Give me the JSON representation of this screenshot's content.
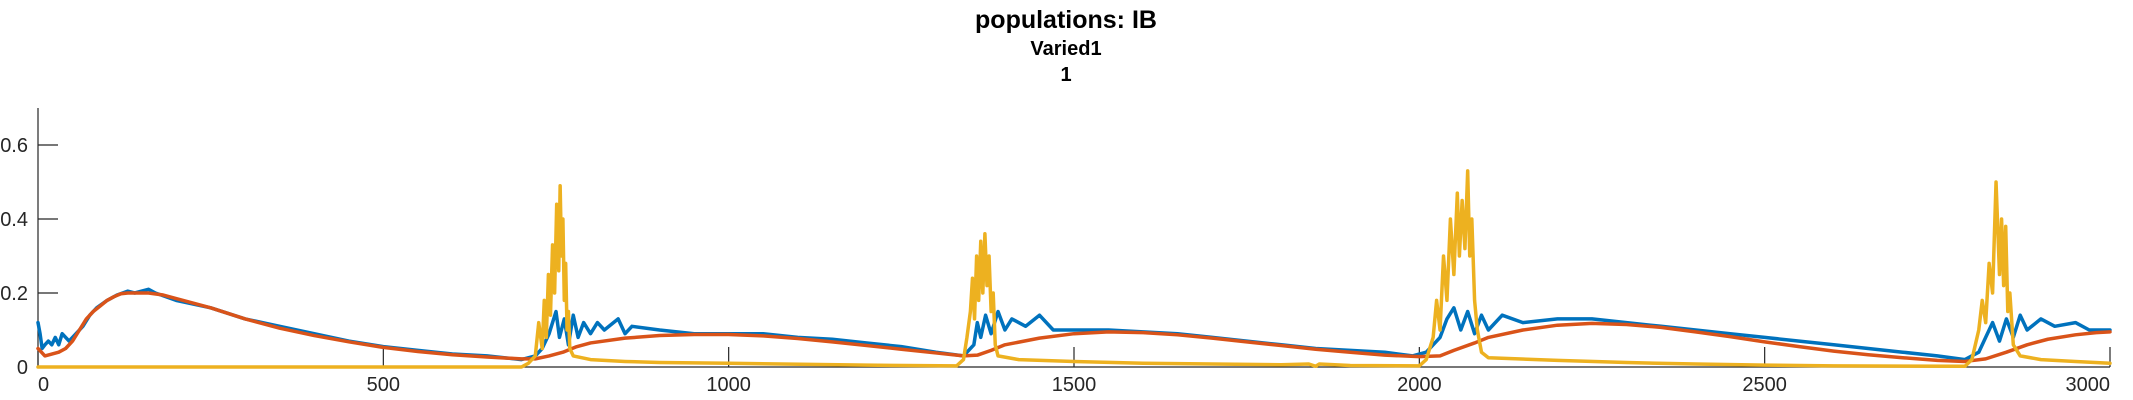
{
  "chart_data": {
    "type": "line",
    "title": "populations: IB",
    "subtitle": "Varied1",
    "subtitle2": "1",
    "xlabel": "",
    "ylabel": "",
    "xlim": [
      0,
      3000
    ],
    "ylim": [
      0,
      0.7
    ],
    "xticks": [
      0,
      500,
      1000,
      1500,
      2000,
      2500,
      3000
    ],
    "xtick_labels": [
      "0",
      "500",
      "1000",
      "1500",
      "2000",
      "2500",
      "3000"
    ],
    "yticks": [
      0,
      0.2,
      0.4,
      0.6
    ],
    "ytick_labels": [
      "0",
      "0.2",
      "0.4",
      "0.6"
    ],
    "grid": false,
    "legend": "none",
    "series": [
      {
        "color": "#0072BD",
        "points": [
          [
            0,
            0.12
          ],
          [
            3,
            0.09
          ],
          [
            6,
            0.05
          ],
          [
            10,
            0.06
          ],
          [
            15,
            0.07
          ],
          [
            20,
            0.06
          ],
          [
            25,
            0.08
          ],
          [
            30,
            0.06
          ],
          [
            35,
            0.09
          ],
          [
            45,
            0.07
          ],
          [
            55,
            0.09
          ],
          [
            65,
            0.11
          ],
          [
            75,
            0.14
          ],
          [
            85,
            0.16
          ],
          [
            100,
            0.18
          ],
          [
            115,
            0.195
          ],
          [
            130,
            0.205
          ],
          [
            140,
            0.2
          ],
          [
            160,
            0.21
          ],
          [
            170,
            0.2
          ],
          [
            200,
            0.18
          ],
          [
            250,
            0.16
          ],
          [
            300,
            0.13
          ],
          [
            350,
            0.11
          ],
          [
            400,
            0.09
          ],
          [
            450,
            0.07
          ],
          [
            500,
            0.055
          ],
          [
            550,
            0.045
          ],
          [
            600,
            0.035
          ],
          [
            650,
            0.03
          ],
          [
            700,
            0.02
          ],
          [
            720,
            0.03
          ],
          [
            730,
            0.05
          ],
          [
            740,
            0.09
          ],
          [
            750,
            0.15
          ],
          [
            755,
            0.08
          ],
          [
            762,
            0.13
          ],
          [
            768,
            0.06
          ],
          [
            775,
            0.14
          ],
          [
            782,
            0.08
          ],
          [
            790,
            0.12
          ],
          [
            800,
            0.09
          ],
          [
            810,
            0.12
          ],
          [
            820,
            0.1
          ],
          [
            840,
            0.13
          ],
          [
            850,
            0.09
          ],
          [
            860,
            0.11
          ],
          [
            900,
            0.1
          ],
          [
            950,
            0.09
          ],
          [
            1000,
            0.09
          ],
          [
            1050,
            0.09
          ],
          [
            1100,
            0.08
          ],
          [
            1150,
            0.075
          ],
          [
            1200,
            0.065
          ],
          [
            1250,
            0.055
          ],
          [
            1300,
            0.04
          ],
          [
            1340,
            0.03
          ],
          [
            1355,
            0.06
          ],
          [
            1360,
            0.12
          ],
          [
            1365,
            0.08
          ],
          [
            1372,
            0.14
          ],
          [
            1380,
            0.09
          ],
          [
            1390,
            0.15
          ],
          [
            1400,
            0.1
          ],
          [
            1410,
            0.13
          ],
          [
            1430,
            0.11
          ],
          [
            1450,
            0.14
          ],
          [
            1470,
            0.1
          ],
          [
            1500,
            0.1
          ],
          [
            1550,
            0.1
          ],
          [
            1600,
            0.095
          ],
          [
            1650,
            0.09
          ],
          [
            1700,
            0.08
          ],
          [
            1750,
            0.07
          ],
          [
            1800,
            0.06
          ],
          [
            1850,
            0.05
          ],
          [
            1900,
            0.045
          ],
          [
            1950,
            0.04
          ],
          [
            1990,
            0.03
          ],
          [
            2010,
            0.04
          ],
          [
            2030,
            0.08
          ],
          [
            2040,
            0.13
          ],
          [
            2050,
            0.16
          ],
          [
            2060,
            0.1
          ],
          [
            2070,
            0.15
          ],
          [
            2080,
            0.09
          ],
          [
            2090,
            0.14
          ],
          [
            2100,
            0.1
          ],
          [
            2120,
            0.14
          ],
          [
            2150,
            0.12
          ],
          [
            2200,
            0.13
          ],
          [
            2250,
            0.13
          ],
          [
            2300,
            0.12
          ],
          [
            2350,
            0.11
          ],
          [
            2400,
            0.1
          ],
          [
            2450,
            0.09
          ],
          [
            2500,
            0.08
          ],
          [
            2550,
            0.07
          ],
          [
            2600,
            0.06
          ],
          [
            2650,
            0.05
          ],
          [
            2700,
            0.04
          ],
          [
            2750,
            0.03
          ],
          [
            2790,
            0.02
          ],
          [
            2810,
            0.04
          ],
          [
            2820,
            0.08
          ],
          [
            2830,
            0.12
          ],
          [
            2840,
            0.07
          ],
          [
            2850,
            0.13
          ],
          [
            2860,
            0.08
          ],
          [
            2870,
            0.14
          ],
          [
            2880,
            0.1
          ],
          [
            2900,
            0.13
          ],
          [
            2920,
            0.11
          ],
          [
            2950,
            0.12
          ],
          [
            2970,
            0.1
          ],
          [
            3000,
            0.1
          ]
        ]
      },
      {
        "color": "#D95319",
        "points": [
          [
            0,
            0.05
          ],
          [
            5,
            0.04
          ],
          [
            10,
            0.03
          ],
          [
            20,
            0.035
          ],
          [
            30,
            0.04
          ],
          [
            40,
            0.05
          ],
          [
            50,
            0.07
          ],
          [
            60,
            0.1
          ],
          [
            70,
            0.13
          ],
          [
            80,
            0.15
          ],
          [
            90,
            0.165
          ],
          [
            100,
            0.18
          ],
          [
            110,
            0.19
          ],
          [
            120,
            0.198
          ],
          [
            130,
            0.2
          ],
          [
            140,
            0.2
          ],
          [
            160,
            0.2
          ],
          [
            180,
            0.195
          ],
          [
            200,
            0.185
          ],
          [
            250,
            0.16
          ],
          [
            300,
            0.13
          ],
          [
            350,
            0.105
          ],
          [
            400,
            0.085
          ],
          [
            450,
            0.068
          ],
          [
            500,
            0.053
          ],
          [
            550,
            0.042
          ],
          [
            600,
            0.033
          ],
          [
            650,
            0.027
          ],
          [
            700,
            0.022
          ],
          [
            720,
            0.022
          ],
          [
            740,
            0.03
          ],
          [
            760,
            0.04
          ],
          [
            780,
            0.055
          ],
          [
            800,
            0.065
          ],
          [
            850,
            0.078
          ],
          [
            900,
            0.085
          ],
          [
            950,
            0.088
          ],
          [
            1000,
            0.088
          ],
          [
            1050,
            0.084
          ],
          [
            1100,
            0.077
          ],
          [
            1150,
            0.068
          ],
          [
            1200,
            0.058
          ],
          [
            1250,
            0.048
          ],
          [
            1300,
            0.038
          ],
          [
            1340,
            0.03
          ],
          [
            1360,
            0.032
          ],
          [
            1380,
            0.045
          ],
          [
            1400,
            0.06
          ],
          [
            1450,
            0.078
          ],
          [
            1500,
            0.09
          ],
          [
            1550,
            0.095
          ],
          [
            1600,
            0.093
          ],
          [
            1650,
            0.087
          ],
          [
            1700,
            0.078
          ],
          [
            1750,
            0.068
          ],
          [
            1800,
            0.058
          ],
          [
            1850,
            0.048
          ],
          [
            1900,
            0.04
          ],
          [
            1950,
            0.032
          ],
          [
            2000,
            0.028
          ],
          [
            2030,
            0.03
          ],
          [
            2050,
            0.045
          ],
          [
            2080,
            0.065
          ],
          [
            2100,
            0.08
          ],
          [
            2150,
            0.1
          ],
          [
            2200,
            0.113
          ],
          [
            2250,
            0.118
          ],
          [
            2300,
            0.115
          ],
          [
            2350,
            0.107
          ],
          [
            2400,
            0.095
          ],
          [
            2450,
            0.082
          ],
          [
            2500,
            0.068
          ],
          [
            2550,
            0.055
          ],
          [
            2600,
            0.043
          ],
          [
            2650,
            0.033
          ],
          [
            2700,
            0.025
          ],
          [
            2750,
            0.018
          ],
          [
            2790,
            0.015
          ],
          [
            2820,
            0.022
          ],
          [
            2850,
            0.04
          ],
          [
            2880,
            0.06
          ],
          [
            2910,
            0.075
          ],
          [
            2950,
            0.087
          ],
          [
            2980,
            0.093
          ],
          [
            3000,
            0.095
          ]
        ]
      },
      {
        "color": "#EDB120",
        "points": [
          [
            0,
            0.0
          ],
          [
            700,
            0.0
          ],
          [
            710,
            0.01
          ],
          [
            720,
            0.03
          ],
          [
            725,
            0.12
          ],
          [
            730,
            0.05
          ],
          [
            733,
            0.18
          ],
          [
            736,
            0.08
          ],
          [
            739,
            0.25
          ],
          [
            742,
            0.14
          ],
          [
            745,
            0.33
          ],
          [
            748,
            0.2
          ],
          [
            751,
            0.44
          ],
          [
            754,
            0.26
          ],
          [
            756,
            0.49
          ],
          [
            758,
            0.3
          ],
          [
            760,
            0.4
          ],
          [
            762,
            0.18
          ],
          [
            764,
            0.28
          ],
          [
            766,
            0.1
          ],
          [
            768,
            0.15
          ],
          [
            770,
            0.05
          ],
          [
            775,
            0.03
          ],
          [
            800,
            0.02
          ],
          [
            850,
            0.015
          ],
          [
            900,
            0.012
          ],
          [
            1000,
            0.01
          ],
          [
            1200,
            0.005
          ],
          [
            1330,
            0.003
          ],
          [
            1340,
            0.02
          ],
          [
            1345,
            0.08
          ],
          [
            1350,
            0.15
          ],
          [
            1353,
            0.24
          ],
          [
            1356,
            0.13
          ],
          [
            1359,
            0.3
          ],
          [
            1362,
            0.18
          ],
          [
            1365,
            0.34
          ],
          [
            1368,
            0.2
          ],
          [
            1371,
            0.36
          ],
          [
            1374,
            0.22
          ],
          [
            1377,
            0.3
          ],
          [
            1380,
            0.15
          ],
          [
            1383,
            0.2
          ],
          [
            1386,
            0.06
          ],
          [
            1390,
            0.03
          ],
          [
            1420,
            0.02
          ],
          [
            1500,
            0.015
          ],
          [
            1600,
            0.01
          ],
          [
            1700,
            0.008
          ],
          [
            1800,
            0.006
          ],
          [
            1840,
            0.008
          ],
          [
            1850,
            0.002
          ],
          [
            1855,
            0.008
          ],
          [
            1900,
            0.004
          ],
          [
            2000,
            0.003
          ],
          [
            2010,
            0.02
          ],
          [
            2020,
            0.08
          ],
          [
            2025,
            0.18
          ],
          [
            2030,
            0.1
          ],
          [
            2035,
            0.3
          ],
          [
            2040,
            0.18
          ],
          [
            2045,
            0.4
          ],
          [
            2050,
            0.25
          ],
          [
            2055,
            0.47
          ],
          [
            2058,
            0.3
          ],
          [
            2062,
            0.45
          ],
          [
            2066,
            0.32
          ],
          [
            2070,
            0.53
          ],
          [
            2073,
            0.3
          ],
          [
            2076,
            0.4
          ],
          [
            2080,
            0.18
          ],
          [
            2084,
            0.1
          ],
          [
            2090,
            0.04
          ],
          [
            2100,
            0.025
          ],
          [
            2200,
            0.018
          ],
          [
            2300,
            0.012
          ],
          [
            2400,
            0.008
          ],
          [
            2500,
            0.005
          ],
          [
            2600,
            0.003
          ],
          [
            2790,
            0.002
          ],
          [
            2800,
            0.02
          ],
          [
            2810,
            0.1
          ],
          [
            2815,
            0.18
          ],
          [
            2820,
            0.12
          ],
          [
            2825,
            0.28
          ],
          [
            2830,
            0.2
          ],
          [
            2835,
            0.5
          ],
          [
            2840,
            0.25
          ],
          [
            2843,
            0.4
          ],
          [
            2846,
            0.22
          ],
          [
            2849,
            0.38
          ],
          [
            2852,
            0.15
          ],
          [
            2855,
            0.2
          ],
          [
            2860,
            0.06
          ],
          [
            2870,
            0.03
          ],
          [
            2900,
            0.02
          ],
          [
            2950,
            0.015
          ],
          [
            3000,
            0.01
          ]
        ]
      }
    ]
  }
}
